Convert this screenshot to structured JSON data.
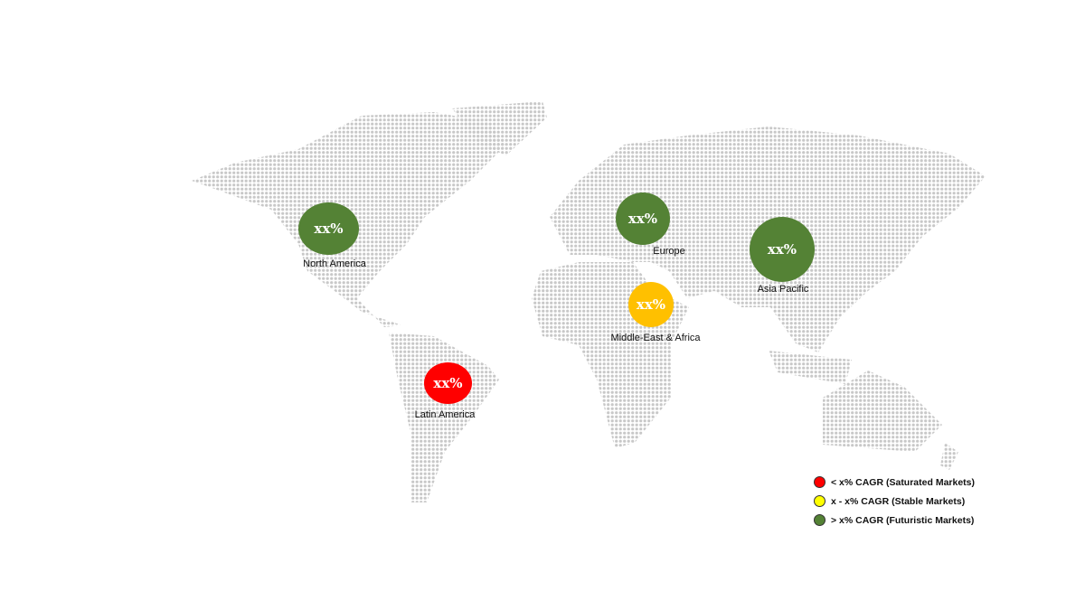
{
  "regions": [
    {
      "name": "North America",
      "value": "xx%",
      "color": "#548235",
      "tier": "futuristic"
    },
    {
      "name": "Europe",
      "value": "xx%",
      "color": "#548235",
      "tier": "futuristic"
    },
    {
      "name": "Asia Pacific",
      "value": "xx%",
      "color": "#548235",
      "tier": "futuristic"
    },
    {
      "name": "Middle-East & Africa",
      "value": "xx%",
      "color": "#FFC000",
      "tier": "stable"
    },
    {
      "name": "Latin America",
      "value": "xx%",
      "color": "#FF0000",
      "tier": "saturated"
    }
  ],
  "legend": [
    {
      "label": "< x% CAGR (Saturated Markets)",
      "color": "#FF0000"
    },
    {
      "label": "x - x% CAGR (Stable Markets)",
      "color": "#FFFF00"
    },
    {
      "label": "> x% CAGR (Futuristic Markets)",
      "color": "#548235"
    }
  ],
  "map_dot_color": "#C8C8C8"
}
